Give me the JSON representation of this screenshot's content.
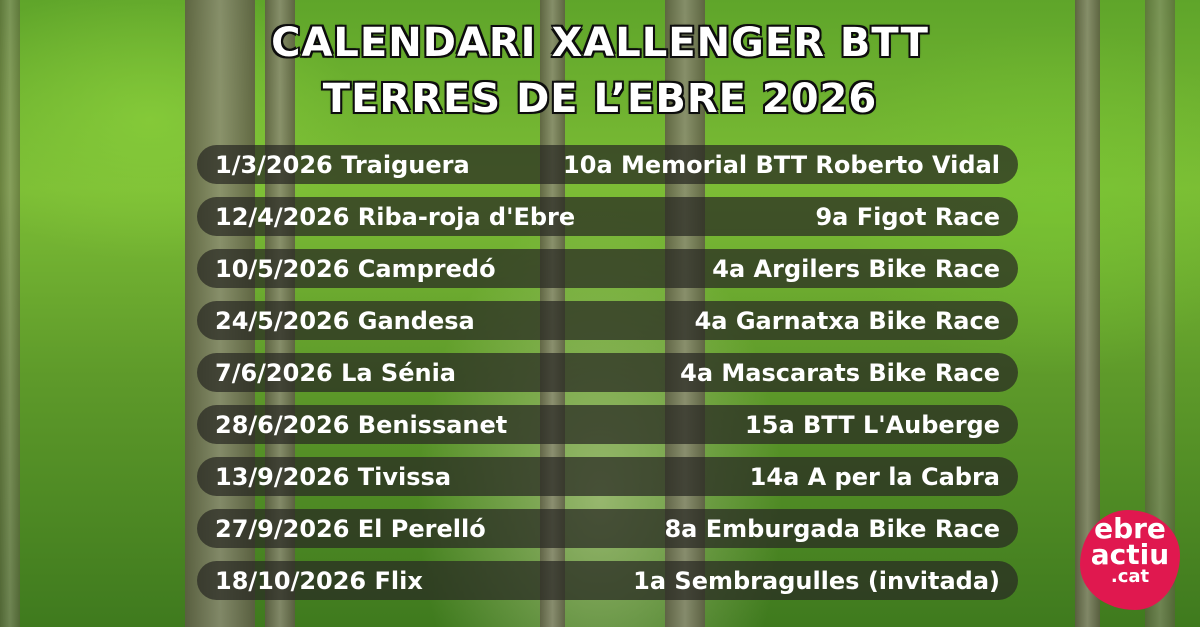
{
  "title": {
    "line1": "CALENDARI XALLENGER BTT",
    "line2": "TERRES DE L’EBRE 2026"
  },
  "events": [
    {
      "date_place": "1/3/2026 Traiguera",
      "race": "10a Memorial BTT Roberto Vidal"
    },
    {
      "date_place": "12/4/2026 Riba-roja d'Ebre",
      "race": "9a Figot Race"
    },
    {
      "date_place": "10/5/2026 Campredó",
      "race": "4a Argilers Bike Race"
    },
    {
      "date_place": "24/5/2026 Gandesa",
      "race": "4a Garnatxa Bike Race"
    },
    {
      "date_place": "7/6/2026 La Sénia",
      "race": "4a Mascarats Bike Race"
    },
    {
      "date_place": "28/6/2026 Benissanet",
      "race": "15a BTT L'Auberge"
    },
    {
      "date_place": "13/9/2026 Tivissa",
      "race": "14a A per la Cabra"
    },
    {
      "date_place": "27/9/2026 El Perelló",
      "race": "8a Emburgada Bike Race"
    },
    {
      "date_place": "18/10/2026 Flix",
      "race": "1a Sembragulles (invitada)"
    }
  ],
  "logo": {
    "line1": "ebre",
    "line2": "actiu",
    "line3": ".cat",
    "color": "#e0184f"
  }
}
